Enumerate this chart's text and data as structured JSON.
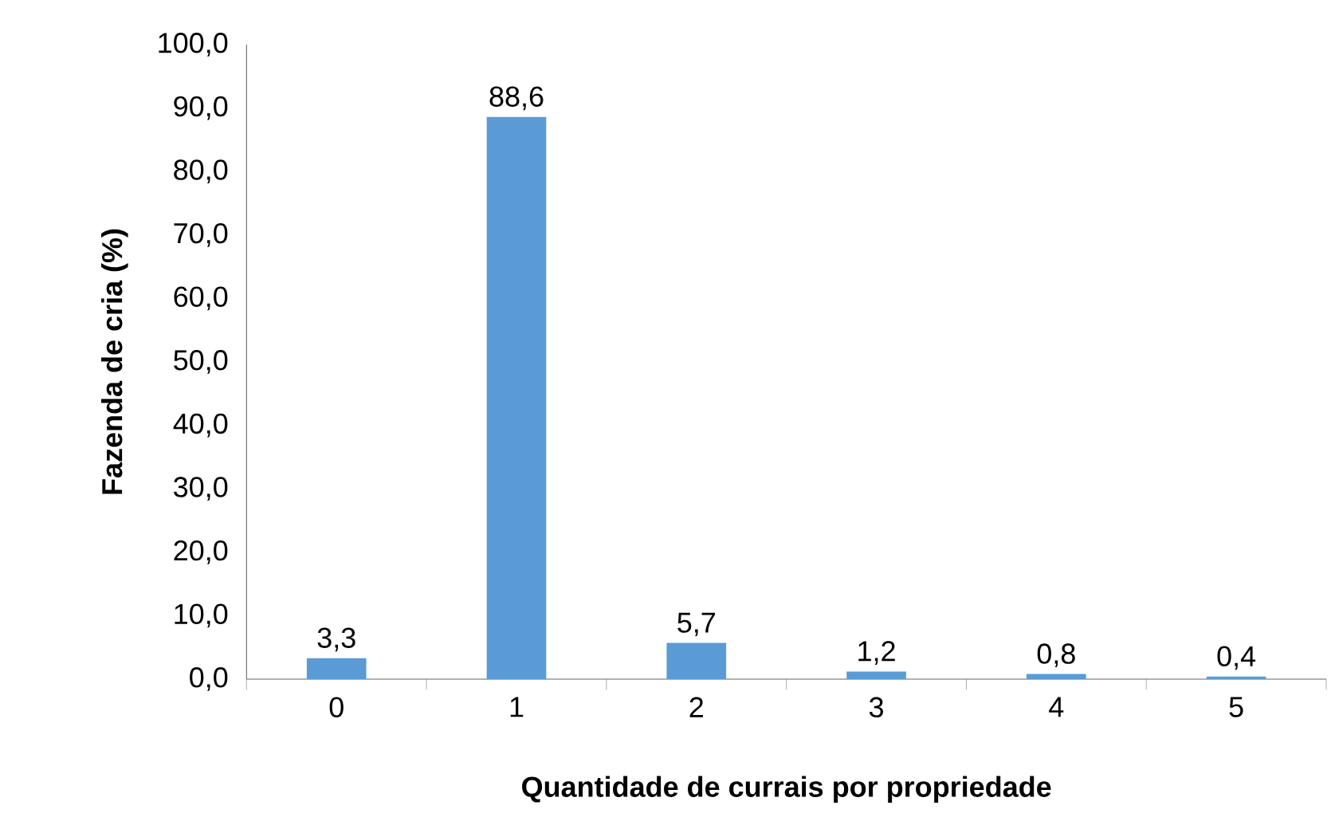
{
  "chart_data": {
    "type": "bar",
    "xlabel": "Quantidade de currais por propriedade",
    "ylabel": "Fazenda de cria (%)",
    "categories": [
      "0",
      "1",
      "2",
      "3",
      "4",
      "5"
    ],
    "values": [
      3.3,
      88.6,
      5.7,
      1.2,
      0.8,
      0.4
    ],
    "value_labels": [
      "3,3",
      "88,6",
      "5,7",
      "1,2",
      "0,8",
      "0,4"
    ],
    "color": "#5b9bd5",
    "ylim": [
      0,
      100
    ],
    "yticks": [
      {
        "value": 0,
        "label": "0,0"
      },
      {
        "value": 10,
        "label": "10,0"
      },
      {
        "value": 20,
        "label": "20,0"
      },
      {
        "value": 30,
        "label": "30,0"
      },
      {
        "value": 40,
        "label": "40,0"
      },
      {
        "value": 50,
        "label": "50,0"
      },
      {
        "value": 60,
        "label": "60,0"
      },
      {
        "value": 70,
        "label": "70,0"
      },
      {
        "value": 80,
        "label": "80,0"
      },
      {
        "value": 90,
        "label": "90,0"
      },
      {
        "value": 100,
        "label": "100,0"
      }
    ],
    "grid": false
  }
}
